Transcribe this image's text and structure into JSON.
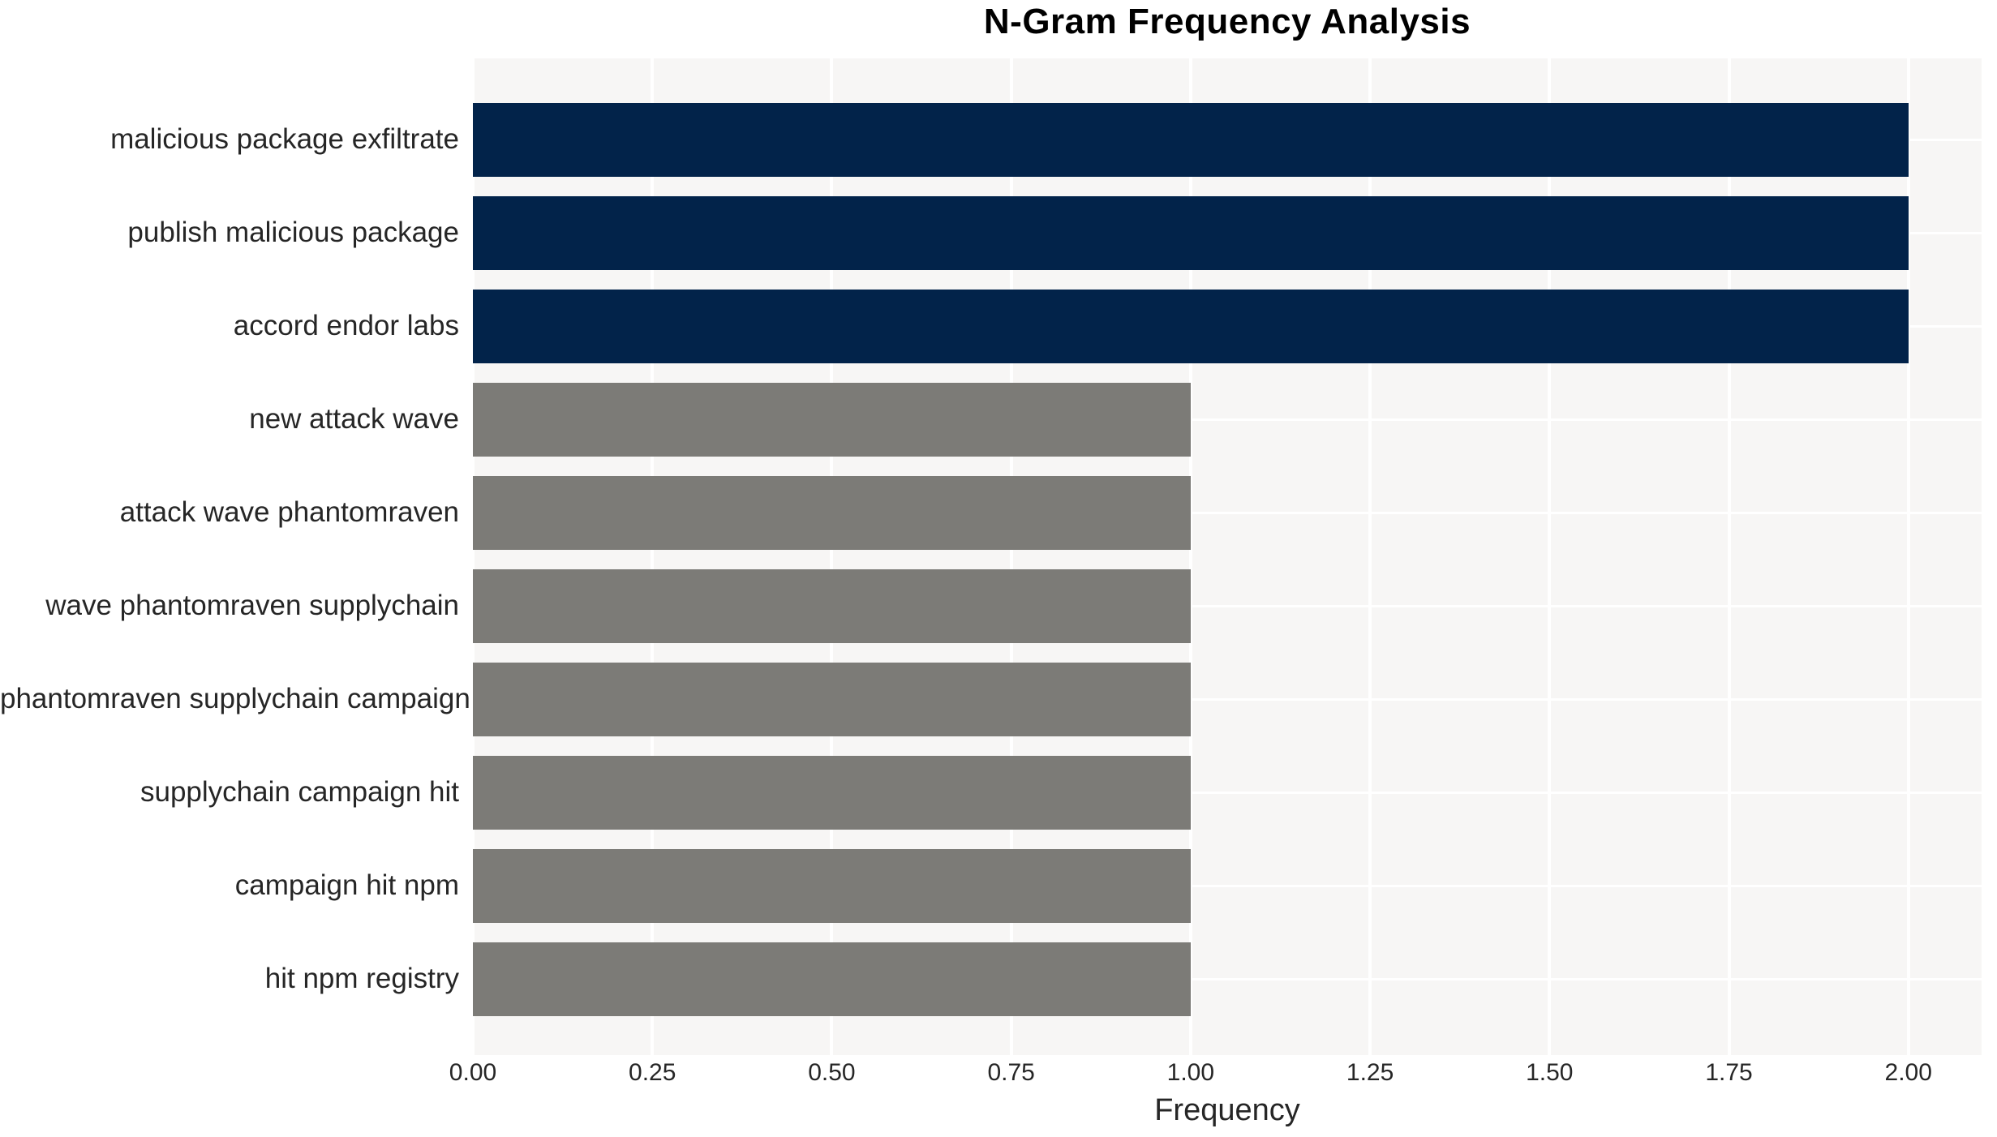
{
  "chart_data": {
    "type": "bar",
    "orientation": "horizontal",
    "title": "N-Gram Frequency Analysis",
    "xlabel": "Frequency",
    "ylabel": "",
    "categories": [
      "malicious package exfiltrate",
      "publish malicious package",
      "accord endor labs",
      "new attack wave",
      "attack wave phantomraven",
      "wave phantomraven supplychain",
      "phantomraven supplychain campaign",
      "supplychain campaign hit",
      "campaign hit npm",
      "hit npm registry"
    ],
    "values": [
      2.0,
      2.0,
      2.0,
      1.0,
      1.0,
      1.0,
      1.0,
      1.0,
      1.0,
      1.0
    ],
    "bar_colors": [
      "#02234a",
      "#02234a",
      "#02234a",
      "#7c7b77",
      "#7c7b77",
      "#7c7b77",
      "#7c7b77",
      "#7c7b77",
      "#7c7b77",
      "#7c7b77"
    ],
    "xticks": {
      "values": [
        0,
        0.25,
        0.5,
        0.75,
        1.0,
        1.25,
        1.5,
        1.75,
        2.0
      ],
      "labels": [
        "0.00",
        "0.25",
        "0.50",
        "0.75",
        "1.00",
        "1.25",
        "1.50",
        "1.75",
        "2.00"
      ]
    },
    "xlim": [
      0,
      2.1
    ],
    "grid": true,
    "legend_position": "none",
    "colors": {
      "bar_high": "#02234a",
      "bar_low": "#7c7b77",
      "plot_background": "#f7f6f5",
      "gridline": "#ffffff",
      "text": "#262626",
      "title": "#000000"
    }
  }
}
